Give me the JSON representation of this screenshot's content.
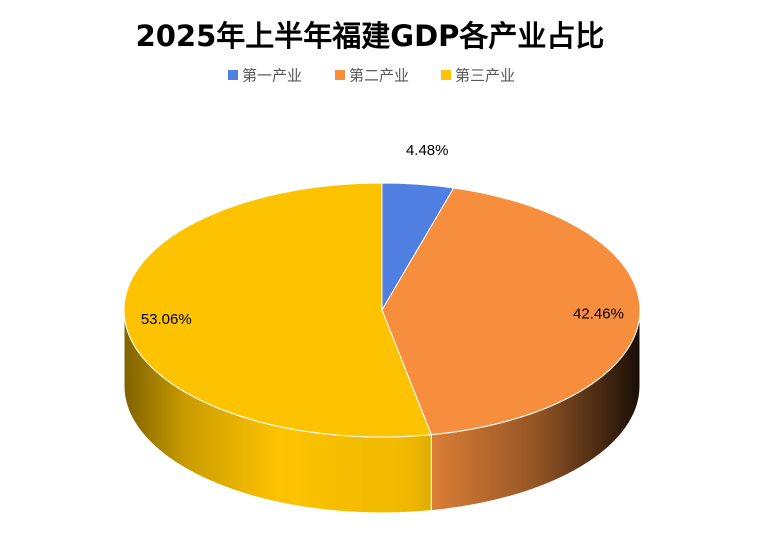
{
  "chart_data": {
    "type": "pie3d",
    "title": "2025年上半年福建GDP各产业占比",
    "series": [
      {
        "name": "第一产业",
        "color": "#4f7fe0",
        "values": [
          4.48
        ],
        "value_labels": [
          "4.48%"
        ]
      },
      {
        "name": "第二产业",
        "color": "#f78e3d",
        "values": [
          42.46
        ],
        "value_labels": [
          "42.46%"
        ]
      },
      {
        "name": "第三产业",
        "color": "#fdc300",
        "values": [
          53.06
        ],
        "value_labels": [
          "53.06%"
        ]
      }
    ],
    "legend": "top"
  }
}
